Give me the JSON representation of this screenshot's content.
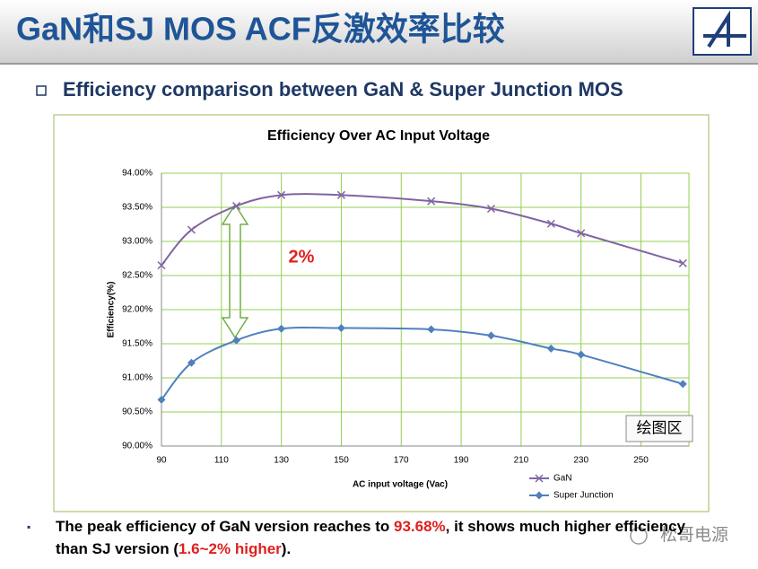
{
  "slide": {
    "title": "GaN和SJ MOS ACF反激效率比较",
    "subtitle": "Efficiency comparison between GaN & Super Junction MOS",
    "footnote": [
      "The peak efficiency of GaN version reaches to ",
      "93.68%",
      ", it shows much higher efficiency",
      " than SJ version (",
      "1.6~2% higher",
      ")."
    ],
    "watermark": "松哥电源"
  },
  "chart_data": {
    "type": "line",
    "title": "Efficiency Over AC Input Voltage",
    "x_label": "AC input voltage (Vac)",
    "y_label": "Efficiency(%)",
    "annotation": "2%",
    "tooltip": "绘图区",
    "x": [
      90,
      100,
      115,
      130,
      150,
      180,
      200,
      220,
      230,
      264
    ],
    "series": [
      {
        "name": "GaN",
        "color": "#8064a2",
        "marker": "x",
        "values": [
          92.65,
          93.17,
          93.52,
          93.68,
          93.68,
          93.59,
          93.48,
          93.26,
          93.12,
          92.68
        ]
      },
      {
        "name": "Super Junction",
        "color": "#4f81bd",
        "marker": "diamond",
        "values": [
          90.68,
          91.22,
          91.55,
          91.72,
          91.73,
          91.71,
          91.62,
          91.43,
          91.34,
          90.91
        ]
      }
    ],
    "xlim": [
      90,
      266
    ],
    "xticks": [
      90,
      110,
      130,
      150,
      170,
      190,
      210,
      230,
      250
    ],
    "ylim": [
      90,
      94
    ],
    "yticks": [
      {
        "value": 90,
        "label": "90.00%"
      },
      {
        "value": 90.5,
        "label": "90.50%"
      },
      {
        "value": 91,
        "label": "91.00%"
      },
      {
        "value": 91.5,
        "label": "91.50%"
      },
      {
        "value": 92,
        "label": "92.00%"
      },
      {
        "value": 92.5,
        "label": "92.50%"
      },
      {
        "value": 93,
        "label": "93.00%"
      },
      {
        "value": 93.5,
        "label": "93.50%"
      },
      {
        "value": 94,
        "label": "94.00%"
      }
    ],
    "grid": true,
    "legend": "bottom-right"
  }
}
